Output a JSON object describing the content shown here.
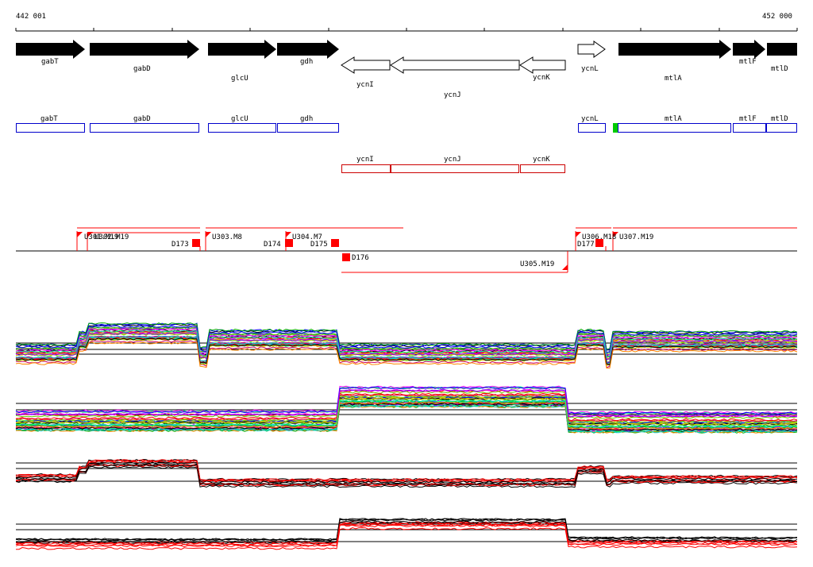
{
  "coords": {
    "start_label": "442 001",
    "end_label": "452 000"
  },
  "genes_forward": [
    "gabT",
    "gabD",
    "glcU",
    "gdh",
    "mtlA",
    "mtlF",
    "mtlD"
  ],
  "genes_reverse": [
    "ycnI",
    "ycnJ",
    "ycnK"
  ],
  "genes_forward_open": [
    "ycnL"
  ],
  "annot_blue": [
    "gabT",
    "gabD",
    "glcU",
    "gdh",
    "ycnL",
    "mtlA",
    "mtlF",
    "mtlD"
  ],
  "annot_red": [
    "ycnI",
    "ycnJ",
    "ycnK"
  ],
  "segments_upper": [
    "U301.M19",
    "U302.M19",
    "U303.M8",
    "U304.M7",
    "U306.M18",
    "U307.M19"
  ],
  "segments_lower": [
    "U305.M19"
  ],
  "down_labels": [
    "D173",
    "D174",
    "D175",
    "D176",
    "D177"
  ],
  "colors": {
    "forward_gene": "#000000",
    "annot_blue": "#0000cc",
    "annot_red": "#cc0000",
    "segment_red": "#ff0000",
    "highlight_green": "#00cc00"
  },
  "profile_panels": [
    "multi-color expression profiles (upper)",
    "multi-color expression profiles (middle)",
    "black/red profile (lower 1)",
    "black/red profile (lower 2)"
  ]
}
